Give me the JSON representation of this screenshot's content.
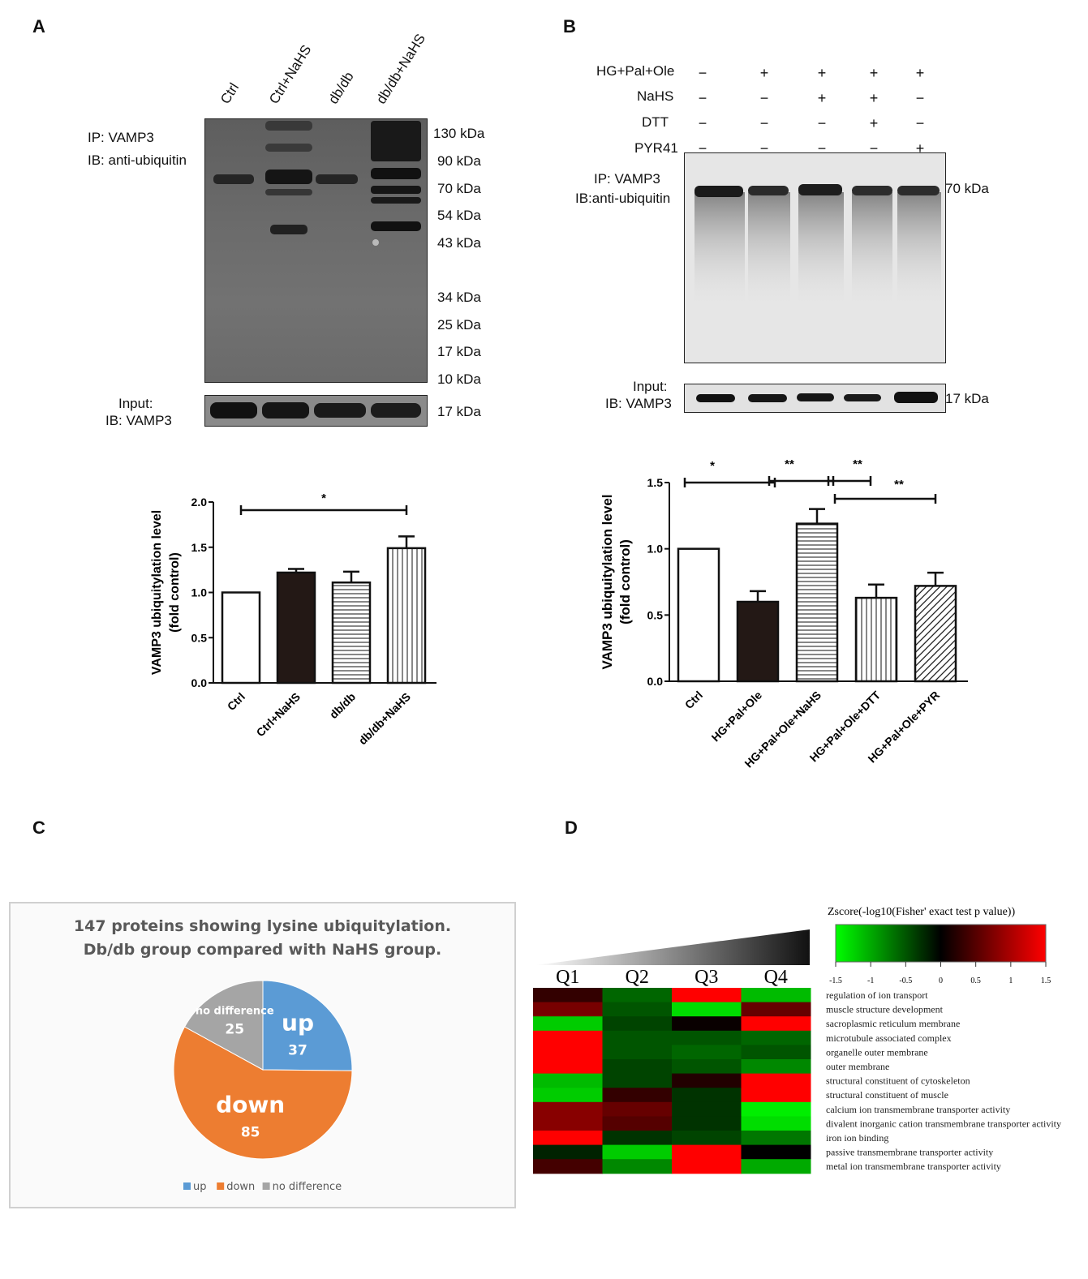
{
  "panel_a": {
    "letter": "A",
    "lanes": [
      "Ctrl",
      "Ctrl+NaHS",
      "db/db",
      "db/db+NaHS"
    ],
    "ip_label": "IP: VAMP3",
    "ib_label": "IB: anti-ubiquitin",
    "markers": [
      "130 kDa",
      "90 kDa",
      "70 kDa",
      "54 kDa",
      "43 kDa",
      "34 kDa",
      "25 kDa",
      "17 kDa",
      "10 kDa"
    ],
    "input_label": "Input:",
    "input_ib_label": "IB: VAMP3",
    "input_marker": "17 kDa"
  },
  "panel_b": {
    "letter": "B",
    "treatments": [
      {
        "name": "HG+Pal+Ole",
        "signs": [
          "−",
          "+",
          "+",
          "+",
          "+"
        ]
      },
      {
        "name": "NaHS",
        "signs": [
          "−",
          "−",
          "+",
          "+",
          "−"
        ]
      },
      {
        "name": "DTT",
        "signs": [
          "−",
          "−",
          "−",
          "+",
          "−"
        ]
      },
      {
        "name": "PYR41",
        "signs": [
          "−",
          "−",
          "−",
          "−",
          "+"
        ]
      }
    ],
    "ip_label": "IP: VAMP3",
    "ib_label": "IB:anti-ubiquitin",
    "marker": "70 kDa",
    "input_label": "Input:",
    "input_ib_label": "IB: VAMP3",
    "input_marker": "17 kDa"
  },
  "chart_data": [
    {
      "type": "bar",
      "categories": [
        "Ctrl",
        "Ctrl+NaHS",
        "db/db",
        "db/db+NaHS"
      ],
      "values": [
        1.0,
        1.22,
        1.11,
        1.49
      ],
      "errors": [
        0,
        0.04,
        0.12,
        0.13
      ],
      "ylabel": "VAMP3 ubiquitylation level",
      "ylabel2": "(fold control)",
      "ylim": [
        0,
        2.0
      ],
      "yticks": [
        "0.0",
        "0.5",
        "1.0",
        "1.5",
        "2.0"
      ],
      "patterns": [
        "open",
        "solid",
        "horizontal",
        "vertical"
      ],
      "significance": [
        {
          "from": 0,
          "to": 3,
          "label": "*"
        }
      ]
    },
    {
      "type": "bar",
      "categories": [
        "Ctrl",
        "HG+Pal+Ole",
        "HG+Pal+Ole+NaHS",
        "HG+Pal+Ole+DTT",
        "HG+Pal+Ole+PYR"
      ],
      "values": [
        1.0,
        0.6,
        1.19,
        0.63,
        0.72
      ],
      "errors": [
        0,
        0.08,
        0.11,
        0.1,
        0.1
      ],
      "ylabel": "VAMP3 ubiquitylation level",
      "ylabel2": "(fold control)",
      "ylim": [
        0,
        1.5
      ],
      "yticks": [
        "0.0",
        "0.5",
        "1.0",
        "1.5"
      ],
      "patterns": [
        "open",
        "solid",
        "horizontal",
        "vertical",
        "diagonal"
      ],
      "significance": [
        {
          "from": 0,
          "to": 1,
          "label": "*"
        },
        {
          "from": 1,
          "to": 2,
          "label": "**"
        },
        {
          "from": 2,
          "to": 3,
          "label": "**"
        },
        {
          "from": 2,
          "to": 4,
          "label": "**"
        }
      ]
    },
    {
      "type": "pie",
      "title": "147 proteins showing lysine ubiquitylation.",
      "subtitle": "Db/db group compared with NaHS group.",
      "slices": [
        {
          "name": "up",
          "value": 37,
          "color": "#5b9bd5"
        },
        {
          "name": "down",
          "value": 85,
          "color": "#ed7d31"
        },
        {
          "name": "no difference",
          "value": 25,
          "color": "#a5a5a5"
        }
      ],
      "legend": "bottom"
    },
    {
      "type": "heatmap",
      "title": "Zscore(-log10(Fisher' exact test p value))",
      "columns": [
        "Q1",
        "Q2",
        "Q3",
        "Q4"
      ],
      "rows": [
        "regulation of ion transport",
        "muscle structure development",
        "sacroplasmic reticulum membrane",
        "microtubule associated complex",
        "organelle outer membrane",
        "outer membrane",
        "structural constituent of cytoskeleton",
        "structural constituent of muscle",
        "calcium ion transmembrane transporter activity",
        "divalent inorganic cation transmembrane transporter activity",
        "iron ion binding",
        "passive transmembrane transporter activity",
        "metal ion transmembrane transporter activity"
      ],
      "values": [
        [
          0.3,
          -0.6,
          1.5,
          -1.1
        ],
        [
          0.7,
          -0.5,
          -1.3,
          0.6
        ],
        [
          -1.2,
          -0.4,
          0.05,
          1.5
        ],
        [
          1.5,
          -0.5,
          -0.5,
          -0.6
        ],
        [
          1.5,
          -0.5,
          -0.6,
          -0.5
        ],
        [
          1.5,
          -0.4,
          -0.5,
          -0.8
        ],
        [
          -1.1,
          -0.4,
          0.2,
          1.5
        ],
        [
          -1.2,
          0.3,
          -0.3,
          1.5
        ],
        [
          0.8,
          0.6,
          -0.3,
          -1.4
        ],
        [
          0.8,
          0.5,
          -0.3,
          -1.3
        ],
        [
          1.5,
          -0.3,
          -0.4,
          -0.7
        ],
        [
          -0.2,
          -1.2,
          1.5,
          0.0
        ],
        [
          0.4,
          -0.8,
          1.5,
          -1.0
        ]
      ],
      "color_scale": {
        "min": -1.5,
        "max": 1.5,
        "low": "#00ff00",
        "mid": "#000000",
        "high": "#ff0000"
      },
      "ticks": [
        "-1.5",
        "-1",
        "-0.5",
        "0",
        "0.5",
        "1",
        "1.5"
      ]
    }
  ],
  "panel_c": {
    "letter": "C"
  },
  "panel_d": {
    "letter": "D"
  }
}
